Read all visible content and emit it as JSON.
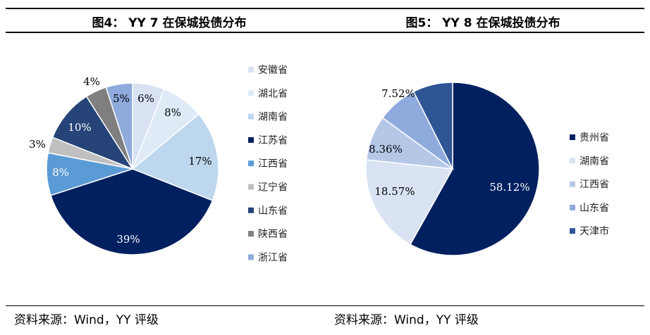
{
  "figures": [
    {
      "title": "图4： YY 7 在保城投债分布",
      "source": "资料来源：Wind，YY 评级"
    },
    {
      "title": "图5： YY 8 在保城投债分布",
      "source": "资料来源：Wind，YY 评级"
    }
  ],
  "chart_data": [
    {
      "type": "pie",
      "title": "图4： YY 7 在保城投债分布",
      "legend": "right",
      "categories": [
        "安徽省",
        "湖北省",
        "湖南省",
        "江苏省",
        "江西省",
        "辽宁省",
        "山东省",
        "陕西省",
        "浙江省"
      ],
      "values": [
        6,
        8,
        17,
        39,
        8,
        3,
        10,
        4,
        5
      ],
      "labels": [
        "6%",
        "8%",
        "17%",
        "39%",
        "8%",
        "3%",
        "10%",
        "4%",
        "5%"
      ],
      "colors": [
        "#d9e2f3",
        "#deebf7",
        "#bdd7ee",
        "#002060",
        "#5b9bd5",
        "#bfbfbf",
        "#264478",
        "#7f7f7f",
        "#8faadc"
      ]
    },
    {
      "type": "pie",
      "title": "图5： YY 8 在保城投债分布",
      "legend": "right",
      "categories": [
        "贵州省",
        "湖南省",
        "江西省",
        "山东省",
        "天津市"
      ],
      "values": [
        58.12,
        18.57,
        8.36,
        7.52,
        7.43
      ],
      "labels": [
        "58.12%",
        "18.57%",
        "8.36%",
        "7.52%",
        ""
      ],
      "colors": [
        "#002060",
        "#dae3f3",
        "#b4c7e7",
        "#8faadc",
        "#2f5597"
      ]
    }
  ]
}
